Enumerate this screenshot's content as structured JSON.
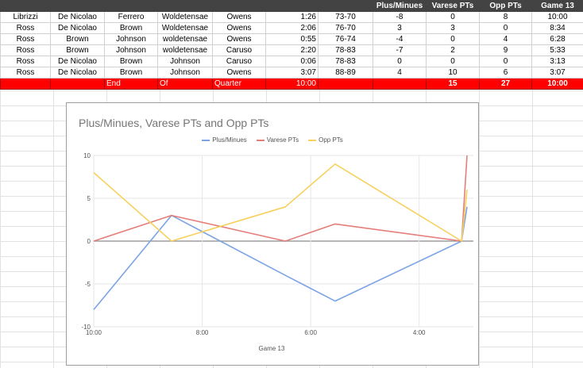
{
  "table": {
    "headers": [
      "",
      "",
      "",
      "",
      "",
      "",
      "",
      "Plus/Minues",
      "Varese PTs",
      "Opp PTs",
      "Game 13"
    ],
    "rows": [
      [
        "Librizzi",
        "De Nicolao",
        "Ferrero",
        "Woldetensae",
        "Owens",
        "1:26",
        "73-70",
        "-8",
        "0",
        "8",
        "10:00"
      ],
      [
        "Ross",
        "De Nicolao",
        "Brown",
        "Woldetensae",
        "Owens",
        "2:06",
        "76-70",
        "3",
        "3",
        "0",
        "8:34"
      ],
      [
        "Ross",
        "Brown",
        "Johnson",
        "woldetensae",
        "Owens",
        "0:55",
        "76-74",
        "-4",
        "0",
        "4",
        "6:28"
      ],
      [
        "Ross",
        "Brown",
        "Johnson",
        "woldetensae",
        "Caruso",
        "2:20",
        "78-83",
        "-7",
        "2",
        "9",
        "5:33"
      ],
      [
        "Ross",
        "De Nicolao",
        "Brown",
        "Johnson",
        "Caruso",
        "0:06",
        "78-83",
        "0",
        "0",
        "0",
        "3:13"
      ],
      [
        "Ross",
        "De Nicolao",
        "Brown",
        "Johnson",
        "Owens",
        "3:07",
        "88-89",
        "4",
        "10",
        "6",
        "3:07"
      ]
    ],
    "total_row": [
      "",
      "",
      "End",
      "Of",
      "Quarter",
      "10:00",
      "",
      "",
      "15",
      "27",
      "10:00"
    ]
  },
  "chart_data": {
    "type": "line",
    "title": "Plus/Minues, Varese PTs and Opp PTs",
    "xlabel": "Game 13",
    "ylabel": "",
    "ylim": [
      -10,
      10
    ],
    "yticks": [
      -10,
      -5,
      0,
      5,
      10
    ],
    "xlim": [
      10.0,
      3.0
    ],
    "xticks": [
      "10:00",
      "8:00",
      "6:00",
      "4:00"
    ],
    "x": [
      "10:00",
      "8:34",
      "6:28",
      "5:33",
      "3:13",
      "3:07"
    ],
    "series": [
      {
        "name": "Plus/Minues",
        "color": "#7ba4e5",
        "values": [
          -8,
          3,
          -4,
          -7,
          0,
          4
        ]
      },
      {
        "name": "Varese PTs",
        "color": "#e57e7a",
        "values": [
          0,
          3,
          0,
          2,
          0,
          10
        ]
      },
      {
        "name": "Opp PTs",
        "color": "#f7d05e",
        "values": [
          8,
          0,
          4,
          9,
          0,
          6
        ]
      }
    ],
    "legend": "top"
  }
}
